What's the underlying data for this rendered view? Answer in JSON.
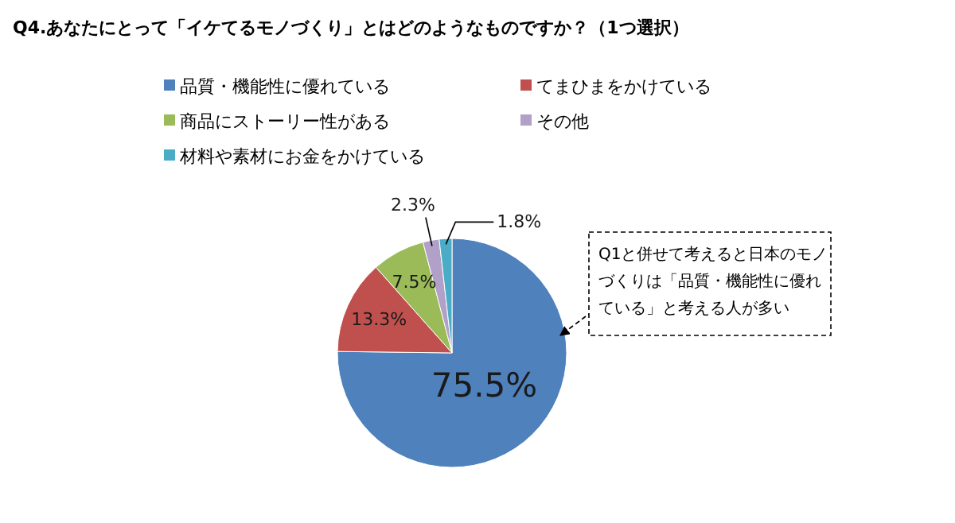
{
  "chart_data": {
    "type": "pie",
    "title": "Q4.あなたにとって「イケてるモノづくり」とはどのようなものですか？（1つ選択）",
    "categories": [
      "品質・機能性に優れている",
      "てまひまをかけている",
      "商品にストーリー性がある",
      "その他",
      "材料や素材にお金をかけている"
    ],
    "values": [
      75.5,
      13.3,
      7.5,
      2.3,
      1.8
    ],
    "colors": [
      "#4f81bd",
      "#c0504d",
      "#9bbb59",
      "#b1a0c7",
      "#4bacc6"
    ],
    "value_labels": [
      "75.5%",
      "13.3%",
      "7.5%",
      "2.3%",
      "1.8%"
    ],
    "legend": "top",
    "annotations": [
      "Q1と併せて考えると日本のモノづくりは「品質・機能性に優れている」と考える人が多い"
    ]
  }
}
